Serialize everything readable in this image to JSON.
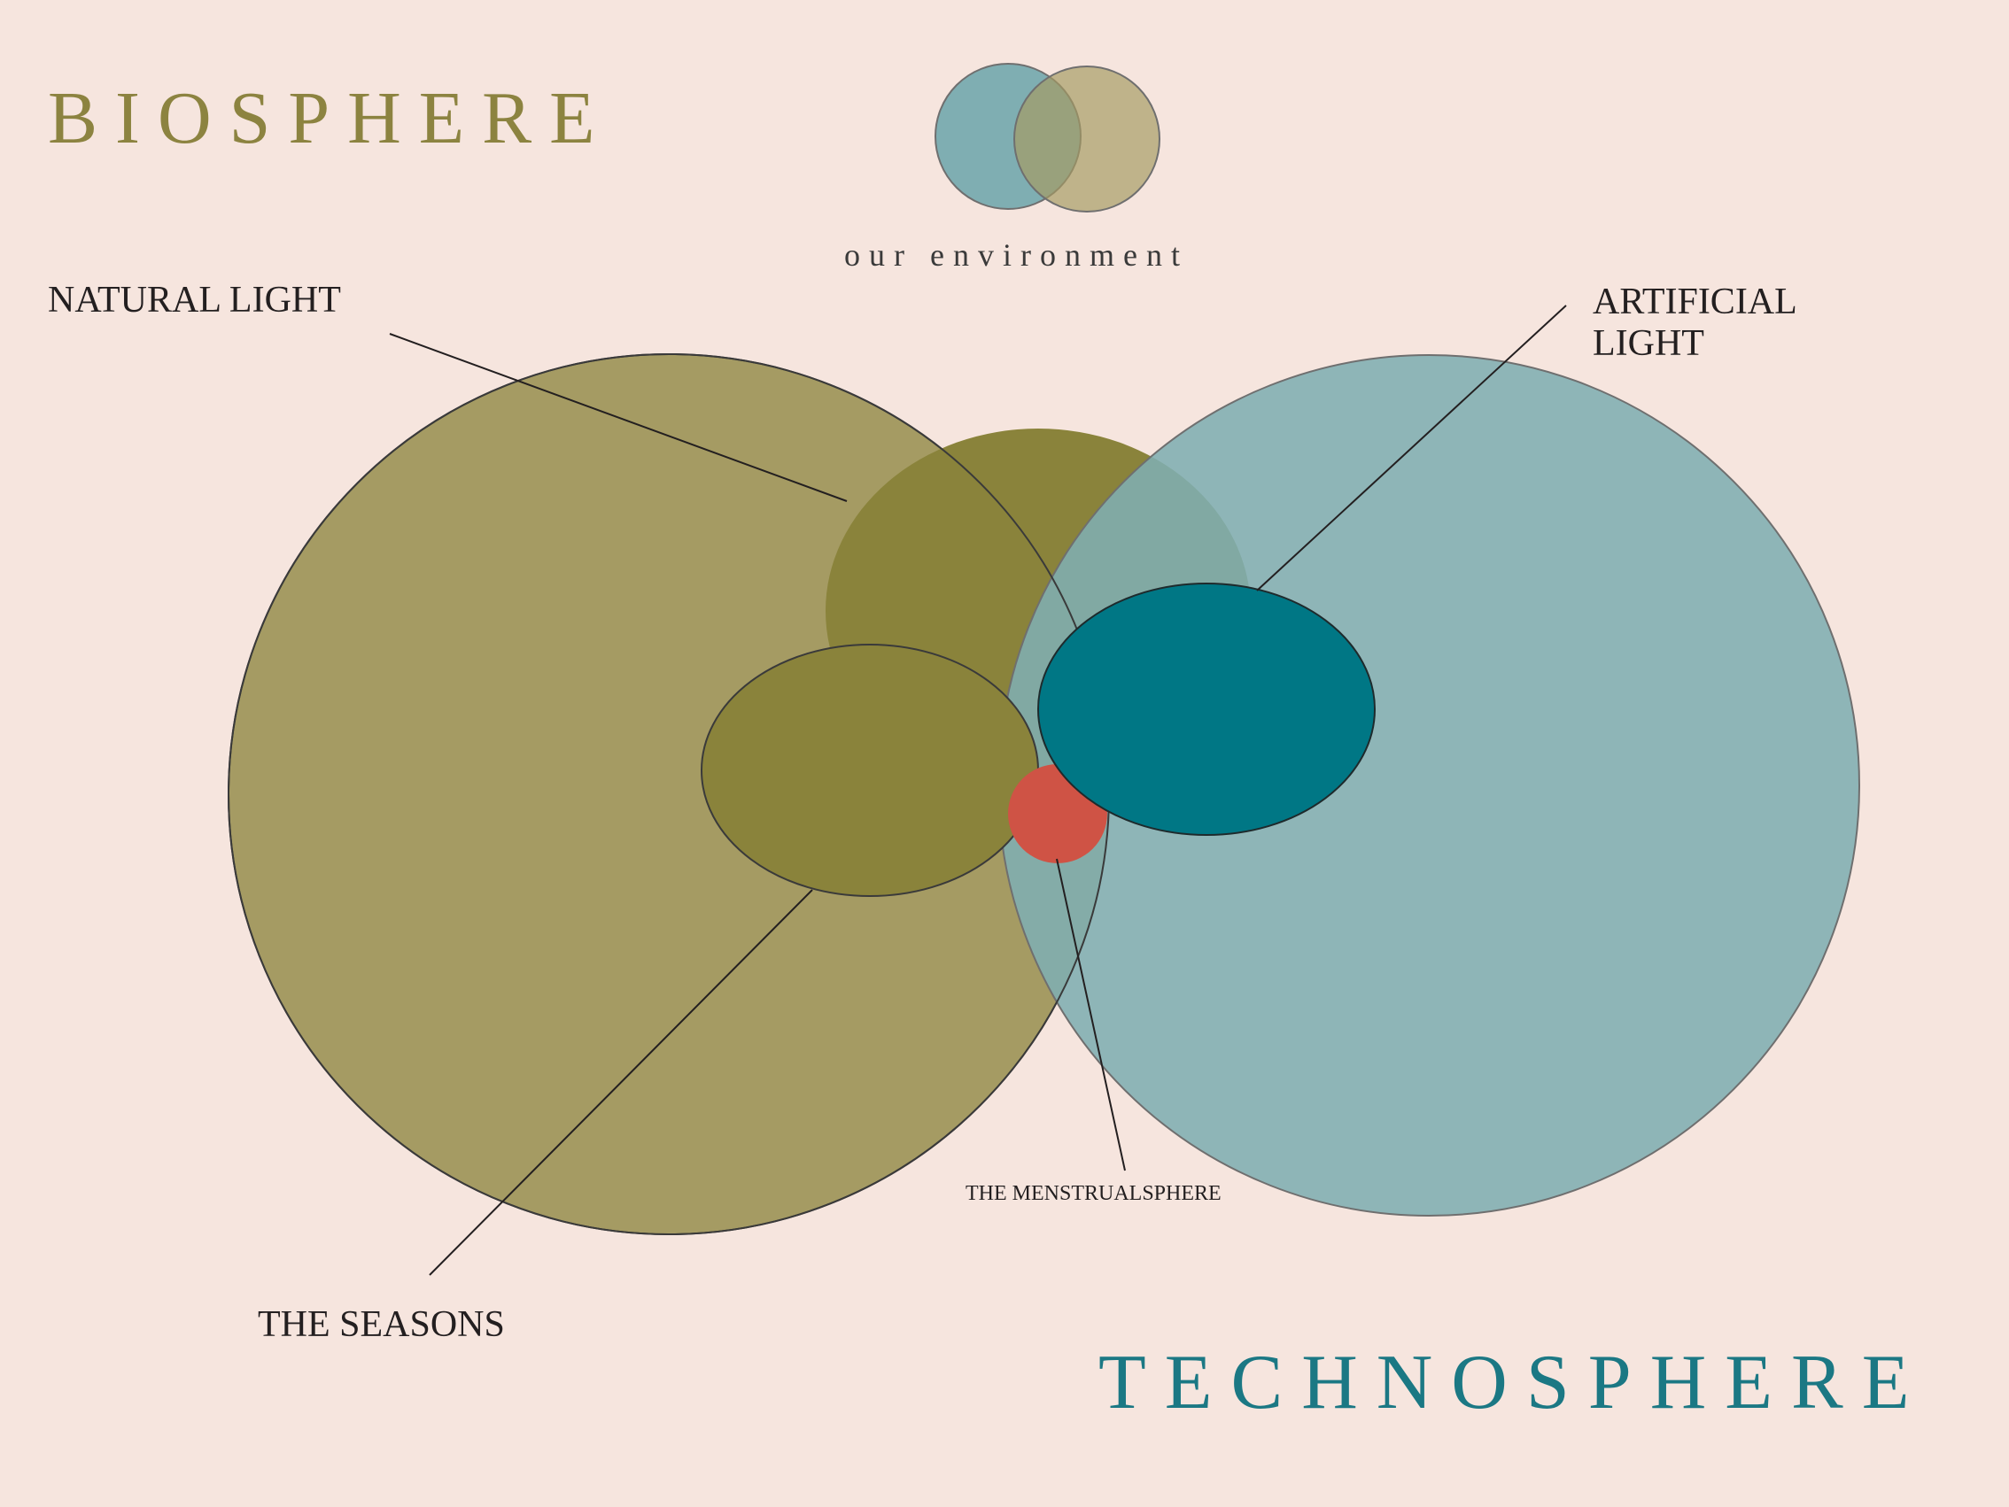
{
  "titles": {
    "biosphere": "BIOSPHERE",
    "technosphere": "TECHNOSPHERE",
    "subtitle": "our environment"
  },
  "labels": {
    "natural_light": "NATURAL LIGHT",
    "artificial_light": [
      "ARTIFICIAL",
      "LIGHT"
    ],
    "the_seasons": "THE SEASONS",
    "the_menstrualsphere": "THE MENSTRUALSPHERE"
  },
  "colors": {
    "background": "#f6e5de",
    "biosphere": "#a59b63",
    "biosphere_dark": "#8a833b",
    "technosphere": "#7faeb2",
    "technosphere_dark": "#007785",
    "menstrualsphere": "#cf5345",
    "line": "#231f20",
    "biosphere_title": "#8c8340",
    "technosphere_title": "#1b7884",
    "text": "#231f20"
  }
}
